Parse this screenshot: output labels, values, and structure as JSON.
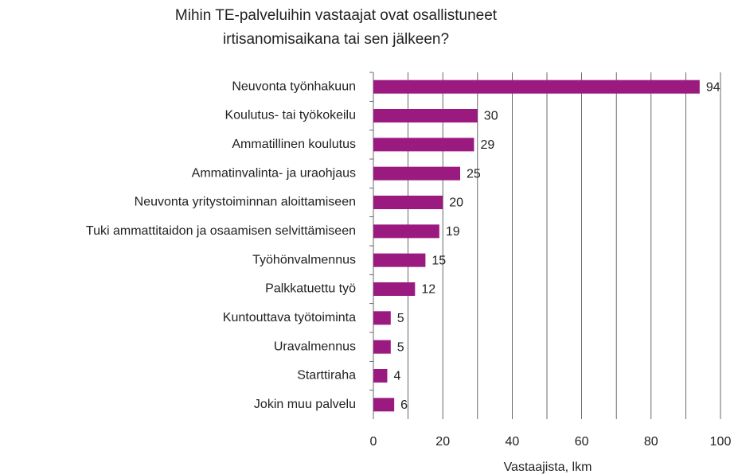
{
  "chart_data": {
    "type": "bar",
    "orientation": "horizontal",
    "title": [
      "Mihin TE-palveluihin vastaajat ovat osallistuneet",
      "irtisanomisaikana tai sen jälkeen?"
    ],
    "categories": [
      "Neuvonta työnhakuun",
      "Koulutus- tai työkokeilu",
      "Ammatillinen koulutus",
      "Ammatinvalinta- ja uraohjaus",
      "Neuvonta yritystoiminnan aloittamiseen",
      "Tuki ammattitaidon ja osaamisen selvittämiseen",
      "Työhönvalmennus",
      "Palkkatuettu työ",
      "Kuntouttava työtoiminta",
      "Uravalmennus",
      "Starttiraha",
      "Jokin muu palvelu"
    ],
    "values": [
      94,
      30,
      29,
      25,
      20,
      19,
      15,
      12,
      5,
      5,
      4,
      6
    ],
    "color": "#9b1a80",
    "x_label": "Vastaajista, lkm",
    "xlim": [
      0,
      100
    ],
    "xticks": [
      0,
      20,
      40,
      60,
      80,
      100
    ],
    "minor_xticks": [
      10,
      30,
      50,
      70,
      90
    ],
    "grid": true
  }
}
